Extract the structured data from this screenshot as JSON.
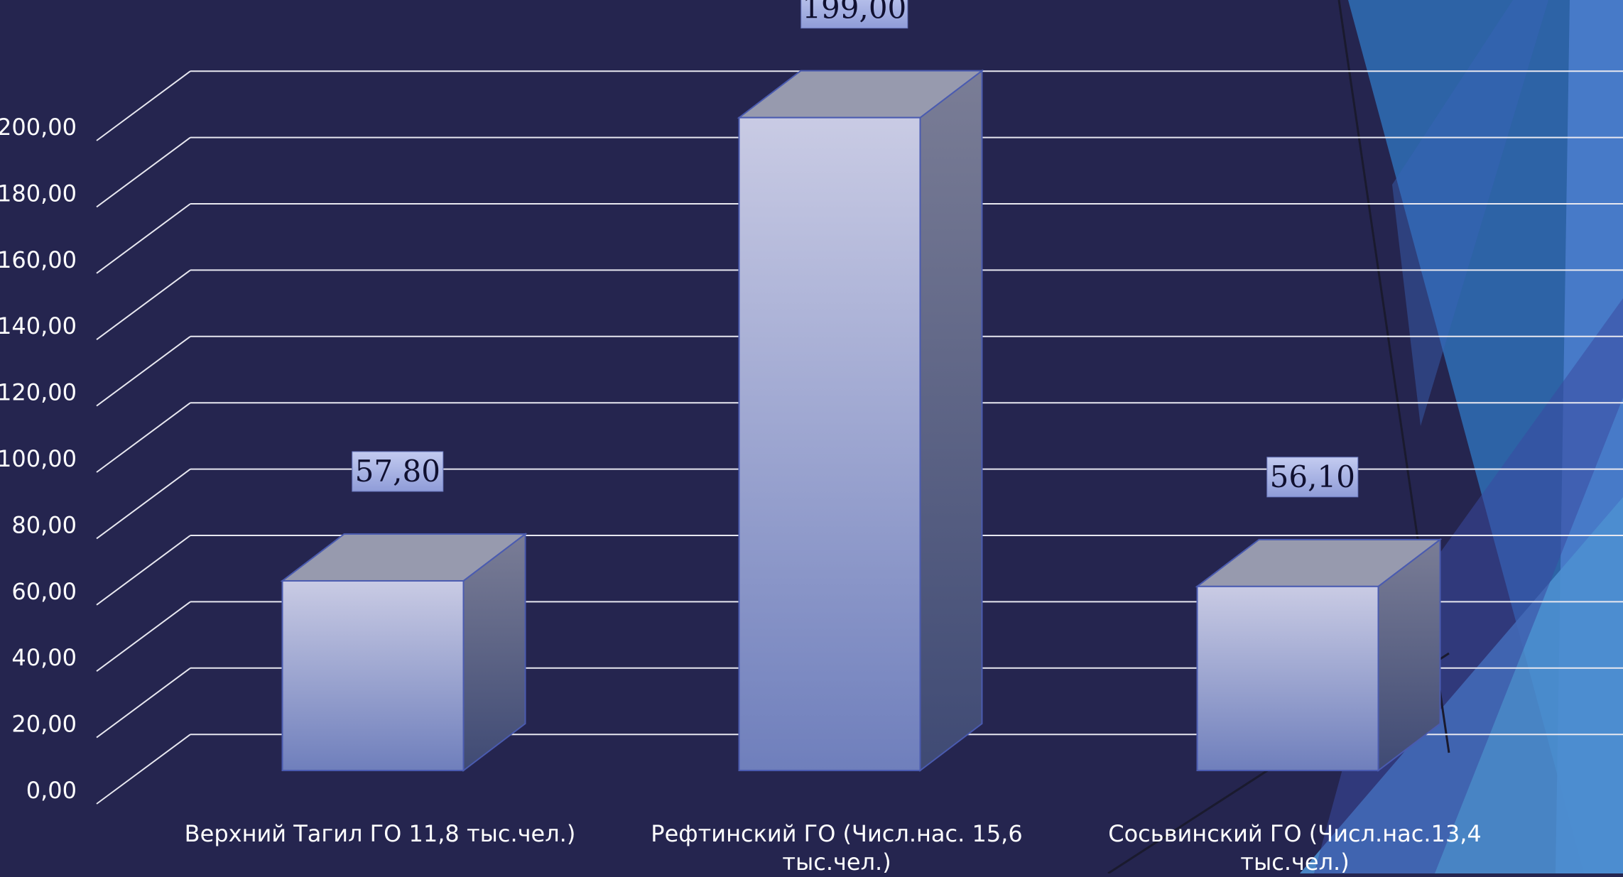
{
  "chart_data": {
    "type": "bar",
    "categories": [
      [
        "Верхний Тагил ГО 11,8 тыс.чел.)"
      ],
      [
        "Рефтинский ГО (Числ.нас. 15,6",
        "тыс.чел.)"
      ],
      [
        "Сосьвинский ГО (Числ.нас.13,4",
        "тыс.чел.)"
      ]
    ],
    "values": [
      57.8,
      199.0,
      56.1
    ],
    "data_labels": [
      "57,80",
      "199,00",
      "56,10"
    ],
    "y_ticks": [
      "0,00",
      "20,00",
      "40,00",
      "60,00",
      "80,00",
      "100,00",
      "120,00",
      "140,00",
      "160,00",
      "180,00",
      "200,00"
    ],
    "ylim": [
      0,
      200
    ],
    "grid": true,
    "legend": "none",
    "colors": {
      "background": "#25254f",
      "gridline": "#e8e8f0",
      "bar_front_top": "#c9cbe4",
      "bar_front_bottom": "#6f7fbc",
      "bar_side_top": "#7a7d96",
      "bar_side_bottom": "#3f4a74",
      "bar_top": "#979aae",
      "bar_outline": "#4a5bb0",
      "label_box": "#aab4e4",
      "decor_blue": "#2f6fb5",
      "decor_light": "#4d8fd0"
    }
  }
}
